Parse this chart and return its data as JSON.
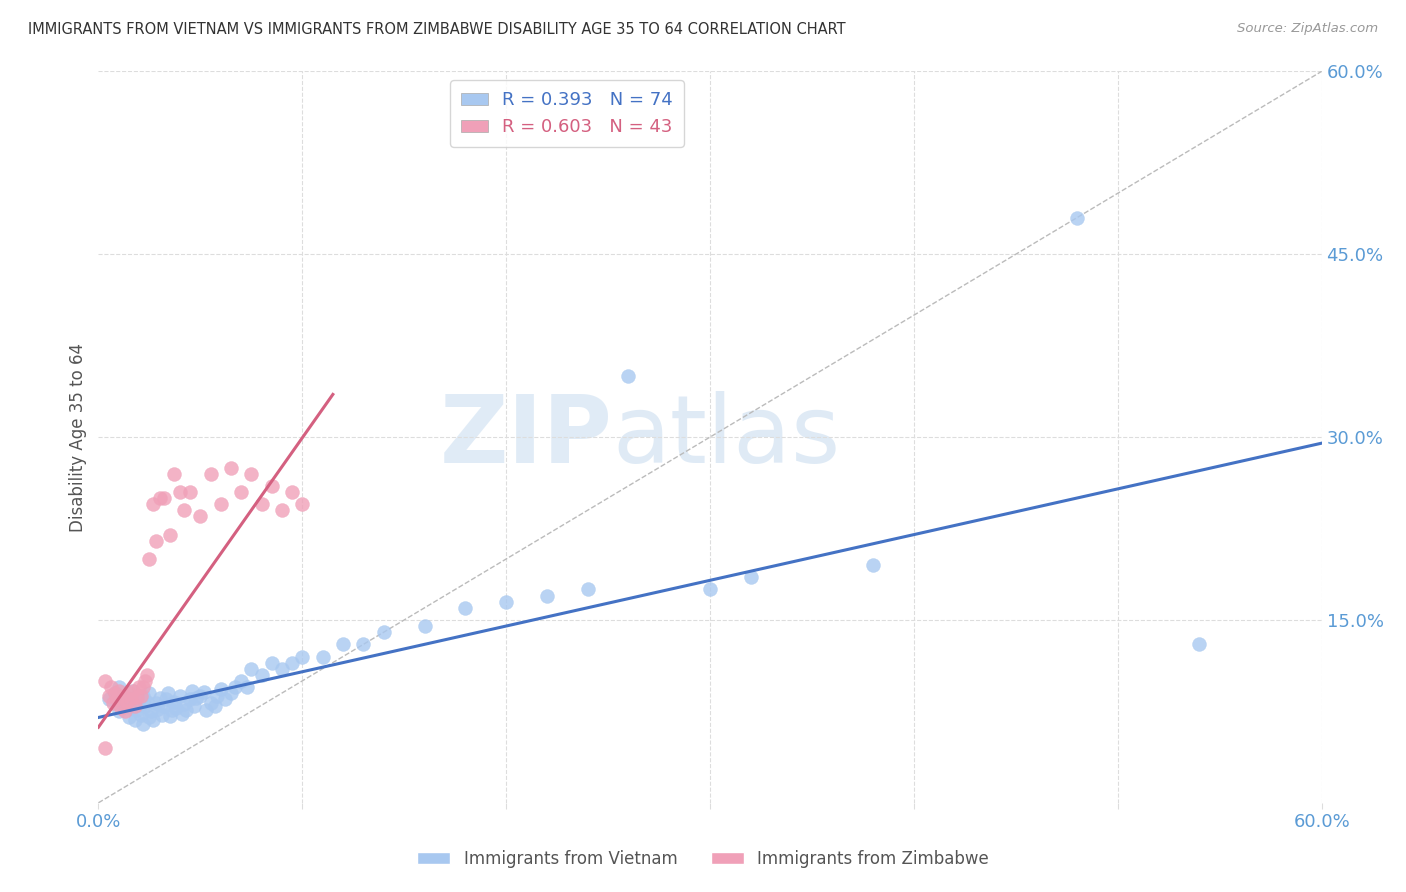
{
  "title": "IMMIGRANTS FROM VIETNAM VS IMMIGRANTS FROM ZIMBABWE DISABILITY AGE 35 TO 64 CORRELATION CHART",
  "source": "Source: ZipAtlas.com",
  "ylabel": "Disability Age 35 to 64",
  "watermark_zip": "ZIP",
  "watermark_atlas": "atlas",
  "xmin": 0.0,
  "xmax": 0.6,
  "ymin": 0.0,
  "ymax": 0.6,
  "vietnam_color": "#A8C8F0",
  "zimbabwe_color": "#F0A0B8",
  "vietnam_line_color": "#4472C4",
  "zimbabwe_line_color": "#D46080",
  "vietnam_R": 0.393,
  "vietnam_N": 74,
  "zimbabwe_R": 0.603,
  "zimbabwe_N": 43,
  "vietnam_scatter_x": [
    0.005,
    0.008,
    0.01,
    0.01,
    0.012,
    0.013,
    0.015,
    0.015,
    0.016,
    0.017,
    0.018,
    0.019,
    0.02,
    0.021,
    0.022,
    0.022,
    0.023,
    0.024,
    0.025,
    0.025,
    0.026,
    0.027,
    0.028,
    0.029,
    0.03,
    0.031,
    0.032,
    0.033,
    0.034,
    0.035,
    0.036,
    0.037,
    0.038,
    0.04,
    0.041,
    0.042,
    0.043,
    0.045,
    0.046,
    0.047,
    0.048,
    0.05,
    0.052,
    0.053,
    0.055,
    0.057,
    0.058,
    0.06,
    0.062,
    0.065,
    0.067,
    0.07,
    0.073,
    0.075,
    0.08,
    0.085,
    0.09,
    0.095,
    0.1,
    0.11,
    0.12,
    0.13,
    0.14,
    0.16,
    0.18,
    0.2,
    0.22,
    0.24,
    0.26,
    0.3,
    0.32,
    0.38,
    0.48,
    0.54
  ],
  "vietnam_scatter_y": [
    0.085,
    0.09,
    0.075,
    0.095,
    0.08,
    0.088,
    0.07,
    0.082,
    0.078,
    0.092,
    0.068,
    0.076,
    0.085,
    0.072,
    0.088,
    0.065,
    0.079,
    0.083,
    0.07,
    0.09,
    0.075,
    0.068,
    0.082,
    0.077,
    0.086,
    0.072,
    0.079,
    0.085,
    0.09,
    0.071,
    0.076,
    0.083,
    0.078,
    0.088,
    0.073,
    0.081,
    0.076,
    0.085,
    0.092,
    0.079,
    0.086,
    0.088,
    0.091,
    0.076,
    0.082,
    0.079,
    0.088,
    0.093,
    0.085,
    0.09,
    0.095,
    0.1,
    0.095,
    0.11,
    0.105,
    0.115,
    0.11,
    0.115,
    0.12,
    0.12,
    0.13,
    0.13,
    0.14,
    0.145,
    0.16,
    0.165,
    0.17,
    0.175,
    0.35,
    0.175,
    0.185,
    0.195,
    0.48,
    0.13
  ],
  "zimbabwe_scatter_x": [
    0.003,
    0.005,
    0.006,
    0.007,
    0.008,
    0.009,
    0.01,
    0.011,
    0.012,
    0.013,
    0.014,
    0.015,
    0.016,
    0.017,
    0.018,
    0.019,
    0.02,
    0.021,
    0.022,
    0.023,
    0.024,
    0.025,
    0.027,
    0.028,
    0.03,
    0.032,
    0.035,
    0.037,
    0.04,
    0.042,
    0.045,
    0.05,
    0.055,
    0.06,
    0.065,
    0.07,
    0.075,
    0.08,
    0.085,
    0.09,
    0.095,
    0.1,
    0.003
  ],
  "zimbabwe_scatter_y": [
    0.1,
    0.088,
    0.095,
    0.082,
    0.09,
    0.085,
    0.092,
    0.078,
    0.088,
    0.075,
    0.083,
    0.09,
    0.085,
    0.092,
    0.079,
    0.087,
    0.095,
    0.088,
    0.095,
    0.1,
    0.105,
    0.2,
    0.245,
    0.215,
    0.25,
    0.25,
    0.22,
    0.27,
    0.255,
    0.24,
    0.255,
    0.235,
    0.27,
    0.245,
    0.275,
    0.255,
    0.27,
    0.245,
    0.26,
    0.24,
    0.255,
    0.245,
    0.045
  ],
  "vietnam_line_x": [
    0.0,
    0.6
  ],
  "vietnam_line_y": [
    0.07,
    0.295
  ],
  "zimbabwe_line_x": [
    0.0,
    0.115
  ],
  "zimbabwe_line_y": [
    0.062,
    0.335
  ],
  "grid_color": "#DDDDDD",
  "axis_label_color": "#5B9BD5",
  "title_color": "#333333",
  "source_color": "#999999"
}
